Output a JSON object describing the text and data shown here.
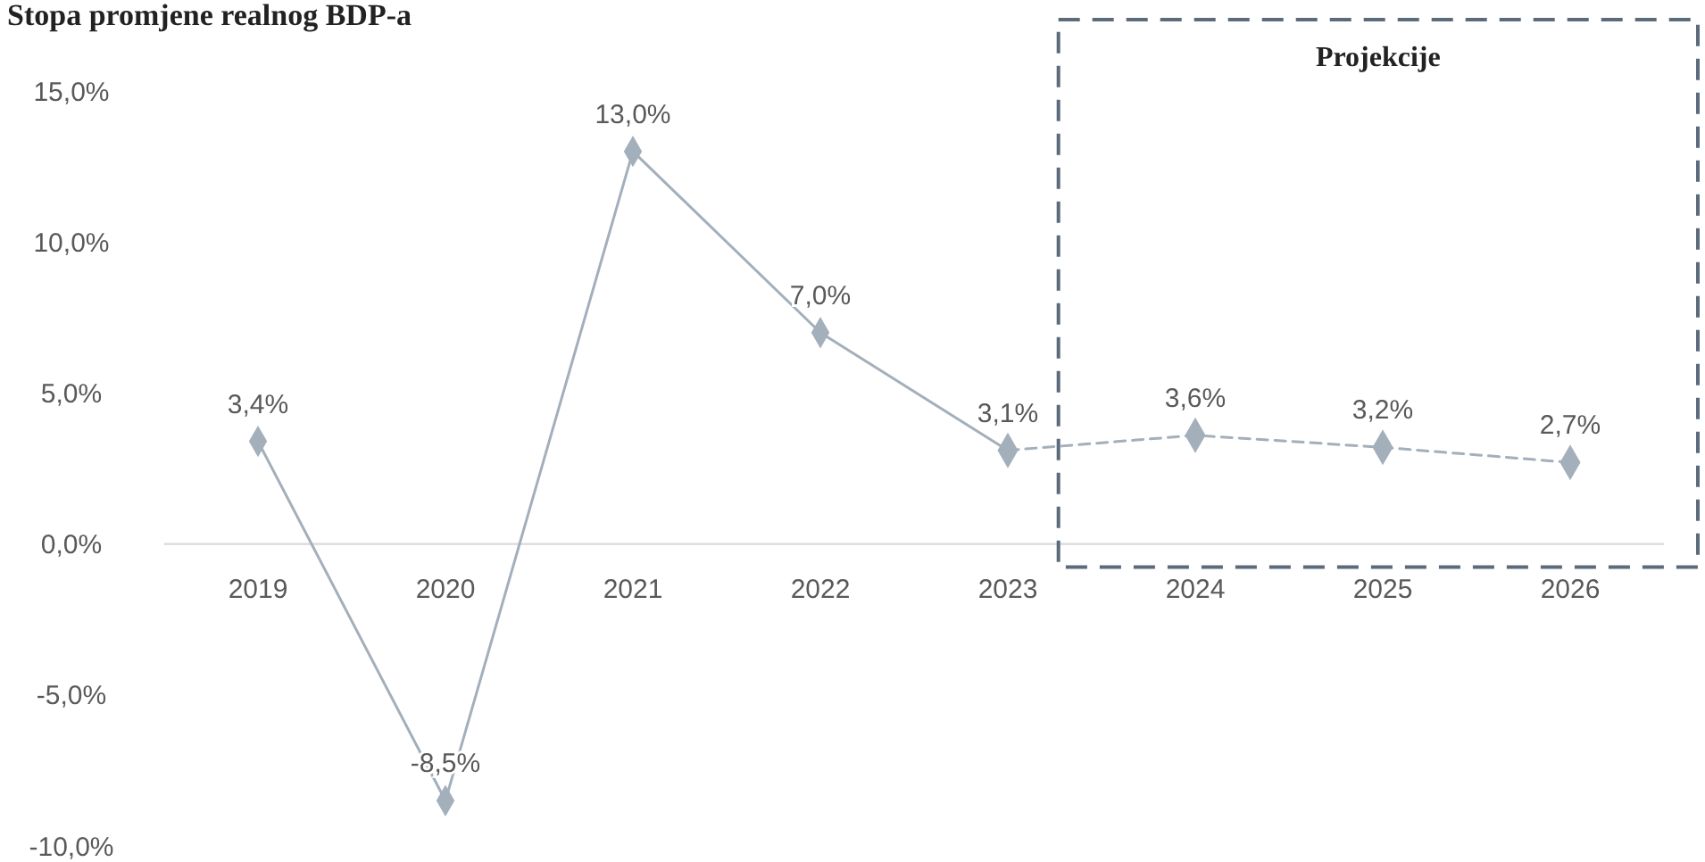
{
  "chart_data": {
    "type": "line",
    "title": "Stopa promjene realnog BDP-a",
    "categories": [
      "2019",
      "2020",
      "2021",
      "2022",
      "2023",
      "2024",
      "2025",
      "2026"
    ],
    "series": [
      {
        "color": "#a3afbb",
        "values": [
          3.4,
          -8.5,
          13.0,
          7.0,
          3.1,
          null,
          null,
          null
        ],
        "value_labels": [
          "3,4%",
          "-8,5%",
          "13,0%",
          "7,0%",
          "3,1%",
          null,
          null,
          null
        ],
        "line_style": "solid"
      },
      {
        "color": "#a3afbb",
        "values": [
          null,
          null,
          null,
          null,
          3.1,
          3.6,
          3.2,
          2.7
        ],
        "value_labels": [
          null,
          null,
          null,
          null,
          null,
          "3,6%",
          "3,2%",
          "2,7%"
        ],
        "line_style": "dashed"
      }
    ],
    "marker": "diamond",
    "ylim": [
      -10,
      15
    ],
    "yticks": [
      {
        "value": -10,
        "label": "-10,0%"
      },
      {
        "value": -5,
        "label": "-5,0%"
      },
      {
        "value": 0,
        "label": "0,0%"
      },
      {
        "value": 5,
        "label": "5,0%"
      },
      {
        "value": 10,
        "label": "10,0%"
      },
      {
        "value": 15,
        "label": "15,0%"
      }
    ],
    "grid": false,
    "annotations": [
      "Projekcije"
    ]
  }
}
